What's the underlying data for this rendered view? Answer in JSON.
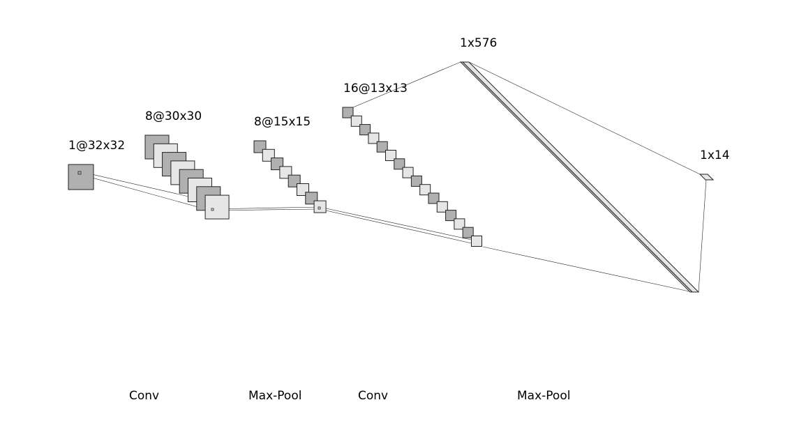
{
  "layers": [
    {
      "id": "input",
      "label": "1@32x32",
      "maps": 1
    },
    {
      "id": "conv1",
      "label": "8@30x30",
      "maps": 8
    },
    {
      "id": "pool1",
      "label": "8@15x15",
      "maps": 8
    },
    {
      "id": "conv2",
      "label": "16@13x13",
      "maps": 16
    },
    {
      "id": "flatten",
      "label": "1x576"
    },
    {
      "id": "output",
      "label": "1x14"
    }
  ],
  "operations": [
    "Conv",
    "Max-Pool",
    "Conv",
    "Max-Pool"
  ],
  "colors": {
    "map_dark": "#b0b0b0",
    "map_light": "#e6e6e6",
    "line": "#222222"
  }
}
